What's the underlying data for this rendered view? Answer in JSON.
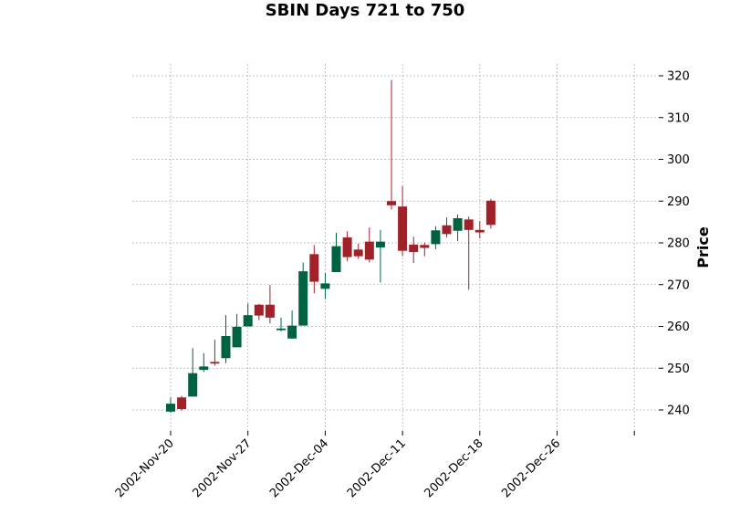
{
  "chart_data": {
    "type": "candlestick",
    "title": "SBIN Days 721 to 750",
    "xlabel": "",
    "ylabel": "Price",
    "ylim": [
      234,
      323
    ],
    "yticks": [
      240,
      250,
      260,
      270,
      280,
      290,
      300,
      310,
      320
    ],
    "xtick_labels": [
      "2002-Nov-20",
      "2002-Nov-27",
      "2002-Dec-04",
      "2002-Dec-11",
      "2002-Dec-18",
      "2002-Dec-26",
      ""
    ],
    "grid": true,
    "colors": {
      "up": "#006340",
      "down": "#A02128",
      "grid": "#b0b0b0"
    },
    "candles": [
      {
        "open": 239.6,
        "high": 243.0,
        "low": 239.3,
        "close": 241.5
      },
      {
        "open": 243.0,
        "high": 243.4,
        "low": 239.8,
        "close": 240.2
      },
      {
        "open": 243.2,
        "high": 254.8,
        "low": 243.2,
        "close": 248.8
      },
      {
        "open": 249.6,
        "high": 253.6,
        "low": 249.1,
        "close": 250.4
      },
      {
        "open": 251.5,
        "high": 256.8,
        "low": 250.6,
        "close": 251.1
      },
      {
        "open": 252.4,
        "high": 262.7,
        "low": 251.2,
        "close": 257.7
      },
      {
        "open": 255.0,
        "high": 263.0,
        "low": 255.0,
        "close": 259.9
      },
      {
        "open": 260.0,
        "high": 265.5,
        "low": 260.0,
        "close": 262.7
      },
      {
        "open": 265.2,
        "high": 265.4,
        "low": 261.5,
        "close": 262.6
      },
      {
        "open": 265.2,
        "high": 269.9,
        "low": 260.7,
        "close": 262.1
      },
      {
        "open": 259.1,
        "high": 262.1,
        "low": 258.8,
        "close": 259.5
      },
      {
        "open": 257.1,
        "high": 263.8,
        "low": 257.1,
        "close": 260.2
      },
      {
        "open": 260.2,
        "high": 275.3,
        "low": 260.2,
        "close": 273.2
      },
      {
        "open": 277.3,
        "high": 279.5,
        "low": 267.9,
        "close": 270.7
      },
      {
        "open": 269.0,
        "high": 272.8,
        "low": 266.6,
        "close": 270.3
      },
      {
        "open": 273.0,
        "high": 282.4,
        "low": 273.0,
        "close": 279.2
      },
      {
        "open": 281.3,
        "high": 282.8,
        "low": 275.6,
        "close": 276.6
      },
      {
        "open": 278.4,
        "high": 279.8,
        "low": 276.2,
        "close": 276.8
      },
      {
        "open": 280.3,
        "high": 283.7,
        "low": 275.3,
        "close": 276.0
      },
      {
        "open": 278.9,
        "high": 283.1,
        "low": 270.5,
        "close": 280.3
      },
      {
        "open": 290.0,
        "high": 319.0,
        "low": 288.0,
        "close": 289.0
      },
      {
        "open": 288.7,
        "high": 293.6,
        "low": 276.8,
        "close": 278.1
      },
      {
        "open": 279.6,
        "high": 281.5,
        "low": 275.2,
        "close": 277.8
      },
      {
        "open": 279.5,
        "high": 280.1,
        "low": 276.8,
        "close": 278.8
      },
      {
        "open": 279.7,
        "high": 284.0,
        "low": 278.5,
        "close": 283.0
      },
      {
        "open": 284.2,
        "high": 286.1,
        "low": 281.3,
        "close": 282.1
      },
      {
        "open": 282.9,
        "high": 286.8,
        "low": 280.4,
        "close": 285.9
      },
      {
        "open": 285.6,
        "high": 286.3,
        "low": 268.8,
        "close": 283.1
      },
      {
        "open": 283.1,
        "high": 285.2,
        "low": 281.1,
        "close": 282.5
      },
      {
        "open": 290.1,
        "high": 290.5,
        "low": 283.4,
        "close": 284.3
      }
    ]
  }
}
